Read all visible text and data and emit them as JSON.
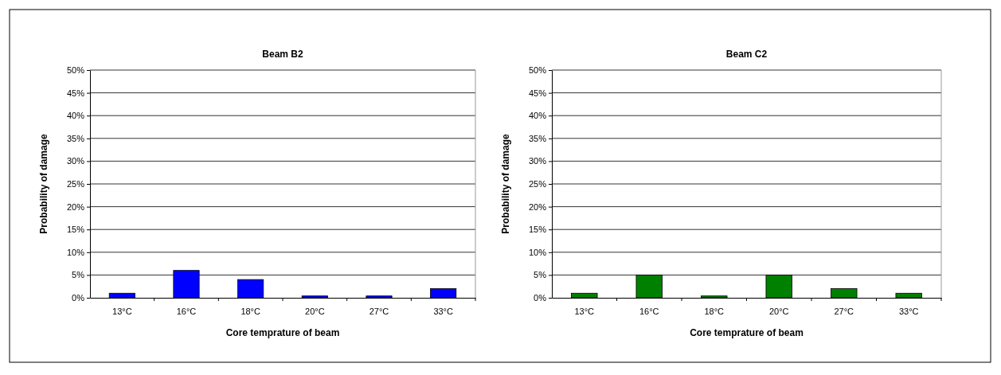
{
  "chart_data": [
    {
      "type": "bar",
      "title": "Beam B2",
      "xlabel": "Core temprature of beam",
      "ylabel": "Probability of damage",
      "categories": [
        "13°C",
        "16°C",
        "18°C",
        "20°C",
        "27°C",
        "33°C"
      ],
      "values": [
        1,
        6,
        4,
        0.4,
        0.4,
        2
      ],
      "color": "#0000ff",
      "ylim": [
        0,
        50
      ],
      "yticks": [
        {
          "value": 0,
          "label": "0%"
        },
        {
          "value": 5,
          "label": "5%"
        },
        {
          "value": 10,
          "label": "10%"
        },
        {
          "value": 15,
          "label": "15%"
        },
        {
          "value": 20,
          "label": "20%"
        },
        {
          "value": 25,
          "label": "25%"
        },
        {
          "value": 30,
          "label": "30%"
        },
        {
          "value": 35,
          "label": "35%"
        },
        {
          "value": 40,
          "label": "40%"
        },
        {
          "value": 45,
          "label": "45%"
        },
        {
          "value": 50,
          "label": "50%"
        }
      ],
      "grid": "y"
    },
    {
      "type": "bar",
      "title": "Beam C2",
      "xlabel": "Core temprature of beam",
      "ylabel": "Probability of damage",
      "categories": [
        "13°C",
        "16°C",
        "18°C",
        "20°C",
        "27°C",
        "33°C"
      ],
      "values": [
        1,
        5,
        0.4,
        5,
        2,
        1
      ],
      "color": "#008000",
      "ylim": [
        0,
        50
      ],
      "yticks": [
        {
          "value": 0,
          "label": "0%"
        },
        {
          "value": 5,
          "label": "5%"
        },
        {
          "value": 10,
          "label": "10%"
        },
        {
          "value": 15,
          "label": "15%"
        },
        {
          "value": 20,
          "label": "20%"
        },
        {
          "value": 25,
          "label": "25%"
        },
        {
          "value": 30,
          "label": "30%"
        },
        {
          "value": 35,
          "label": "35%"
        },
        {
          "value": 40,
          "label": "40%"
        },
        {
          "value": 45,
          "label": "45%"
        },
        {
          "value": 50,
          "label": "50%"
        }
      ],
      "grid": "y"
    }
  ]
}
